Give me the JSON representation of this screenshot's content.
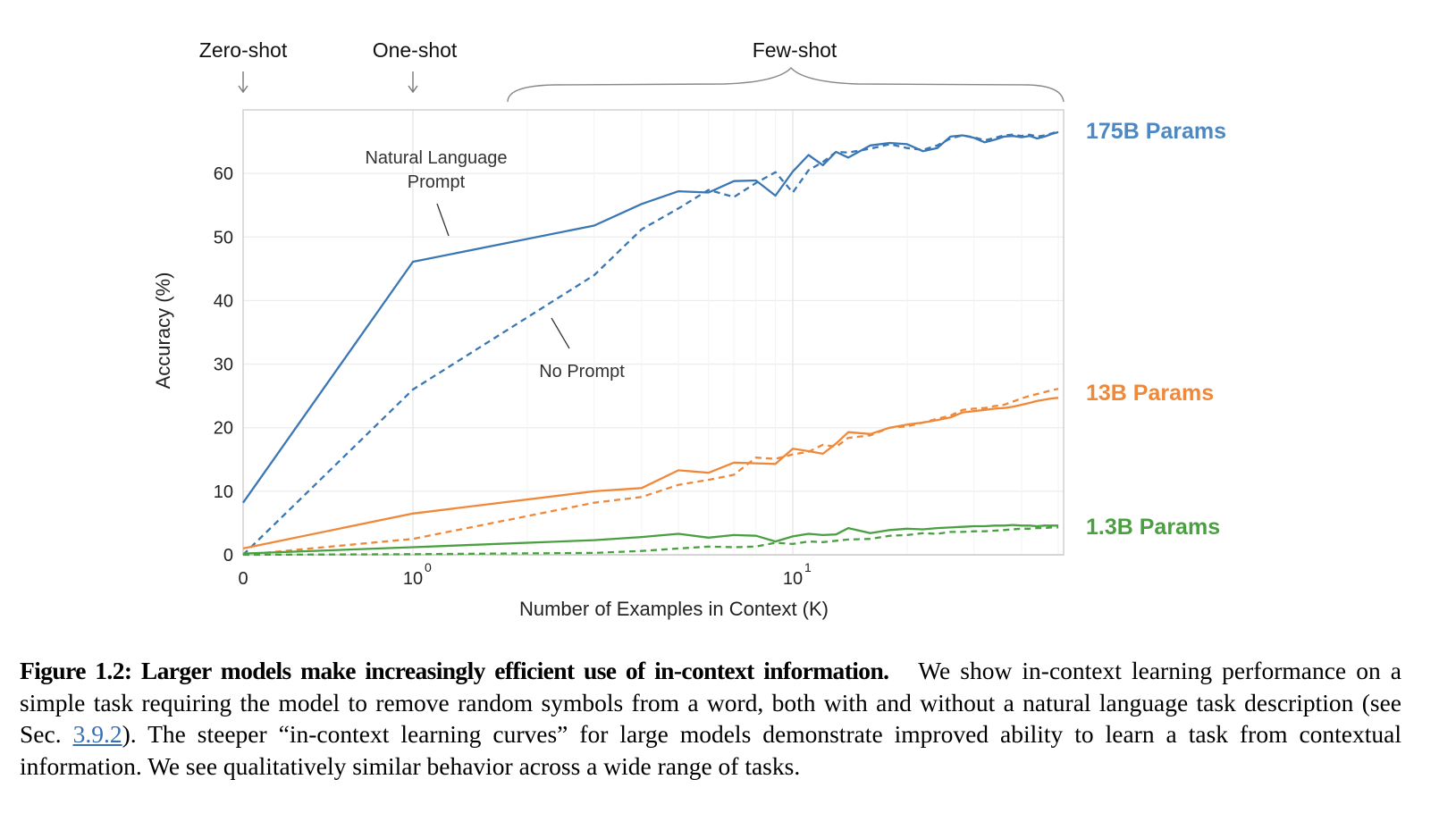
{
  "chart_data": {
    "type": "line",
    "xscale": "symlog (0, then log10)",
    "xlabel": "Number of Examples in Context  (K)",
    "ylabel": "Accuracy (%)",
    "xlim": [
      0,
      50
    ],
    "ylim": [
      0,
      70
    ],
    "yticks": [
      0,
      10,
      20,
      30,
      40,
      50,
      60
    ],
    "xticks": [
      {
        "value": 0,
        "label": "0",
        "exp": ""
      },
      {
        "value": 1,
        "label": "10",
        "exp": "0"
      },
      {
        "value": 10,
        "label": "10",
        "exp": "1"
      }
    ],
    "grid": true,
    "header_labels": {
      "zero_shot": "Zero-shot",
      "one_shot": "One-shot",
      "few_shot": "Few-shot"
    },
    "annotations": {
      "natural_language_prompt_line1": "Natural Language",
      "natural_language_prompt_line2": "Prompt",
      "no_prompt": "No Prompt"
    },
    "x": [
      0,
      1,
      3,
      4,
      5,
      6,
      7,
      8,
      9,
      10,
      11,
      12,
      13,
      14,
      16,
      18,
      20,
      22,
      24,
      26,
      28,
      30,
      32,
      34,
      36,
      38,
      40,
      42,
      44,
      46,
      48,
      50
    ],
    "series": [
      {
        "name": "175B Params - Natural Language Prompt",
        "model": "175B Params",
        "style": "solid",
        "color": "#3a77b5",
        "values": [
          8.2,
          46.1,
          51.8,
          55.2,
          57.2,
          57.0,
          58.8,
          58.9,
          56.5,
          60.3,
          62.9,
          61.3,
          63.4,
          62.5,
          64.4,
          64.8,
          64.6,
          63.5,
          64.0,
          65.8,
          66.0,
          65.6,
          64.9,
          65.3,
          65.8,
          65.9,
          65.7,
          65.9,
          65.5,
          65.8,
          66.2,
          66.5
        ]
      },
      {
        "name": "175B Params - No Prompt",
        "model": "175B Params",
        "style": "dashed",
        "color": "#3a77b5",
        "values": [
          0.0,
          26.0,
          44.0,
          51.2,
          54.5,
          57.4,
          56.3,
          58.5,
          60.2,
          57.0,
          60.5,
          61.8,
          63.4,
          63.3,
          63.9,
          64.6,
          64.0,
          63.7,
          64.4,
          65.5,
          66.0,
          65.7,
          65.2,
          65.6,
          66.0,
          66.1,
          65.9,
          66.1,
          65.8,
          66.0,
          66.3,
          66.6
        ]
      },
      {
        "name": "13B Params - Natural Language Prompt",
        "model": "13B Params",
        "style": "solid",
        "color": "#f0883a",
        "values": [
          1.0,
          6.5,
          10.0,
          10.5,
          13.3,
          12.9,
          14.5,
          14.4,
          14.3,
          16.7,
          16.3,
          15.9,
          17.5,
          19.3,
          19.0,
          20.0,
          20.5,
          20.8,
          21.2,
          21.6,
          22.4,
          22.6,
          22.8,
          23.0,
          23.1,
          23.3,
          23.6,
          23.9,
          24.2,
          24.4,
          24.6,
          24.7
        ]
      },
      {
        "name": "13B Params - No Prompt",
        "model": "13B Params",
        "style": "dashed",
        "color": "#f0883a",
        "values": [
          0.0,
          2.5,
          8.2,
          9.1,
          11.0,
          11.8,
          12.6,
          15.3,
          15.1,
          15.8,
          16.2,
          17.3,
          17.0,
          18.4,
          18.8,
          20.0,
          20.2,
          20.8,
          21.4,
          21.9,
          22.8,
          23.0,
          23.1,
          23.4,
          23.6,
          24.1,
          24.6,
          25.0,
          25.3,
          25.6,
          25.9,
          26.1
        ]
      },
      {
        "name": "1.3B Params - Natural Language Prompt",
        "model": "1.3B Params",
        "style": "solid",
        "color": "#4aa040",
        "values": [
          0.2,
          1.2,
          2.3,
          2.8,
          3.3,
          2.7,
          3.1,
          3.0,
          2.1,
          2.9,
          3.3,
          3.1,
          3.2,
          4.2,
          3.4,
          3.9,
          4.1,
          4.0,
          4.2,
          4.3,
          4.4,
          4.5,
          4.5,
          4.6,
          4.6,
          4.7,
          4.6,
          4.6,
          4.5,
          4.6,
          4.6,
          4.6
        ]
      },
      {
        "name": "1.3B Params - No Prompt",
        "model": "1.3B Params",
        "style": "dashed",
        "color": "#4aa040",
        "values": [
          0.0,
          0.1,
          0.3,
          0.6,
          1.0,
          1.3,
          1.2,
          1.3,
          1.9,
          1.7,
          2.1,
          2.0,
          2.2,
          2.4,
          2.5,
          3.0,
          3.1,
          3.4,
          3.3,
          3.6,
          3.6,
          3.7,
          3.7,
          3.8,
          3.9,
          4.0,
          4.1,
          4.1,
          4.2,
          4.2,
          4.3,
          4.3
        ]
      }
    ],
    "legend": [
      {
        "label": "175B Params",
        "color": "#4e88c3"
      },
      {
        "label": "13B Params",
        "color": "#f0883a"
      },
      {
        "label": "1.3B Params",
        "color": "#4aa040"
      }
    ],
    "legend_placement": "right (inline, at line ends)"
  },
  "caption": {
    "title": "Figure 1.2: Larger models make increasingly efficient use of in-context information.",
    "body_part1": "We show in-context learning performance on a simple task requiring the model to remove random symbols from a word, both with and without a natural language task description (see Sec. ",
    "ref": "3.9.2",
    "body_part2": "). The steeper “in-context learning curves” for large models demonstrate improved ability to learn a task from contextual information. We see qualitatively similar behavior across a wide range of tasks."
  }
}
